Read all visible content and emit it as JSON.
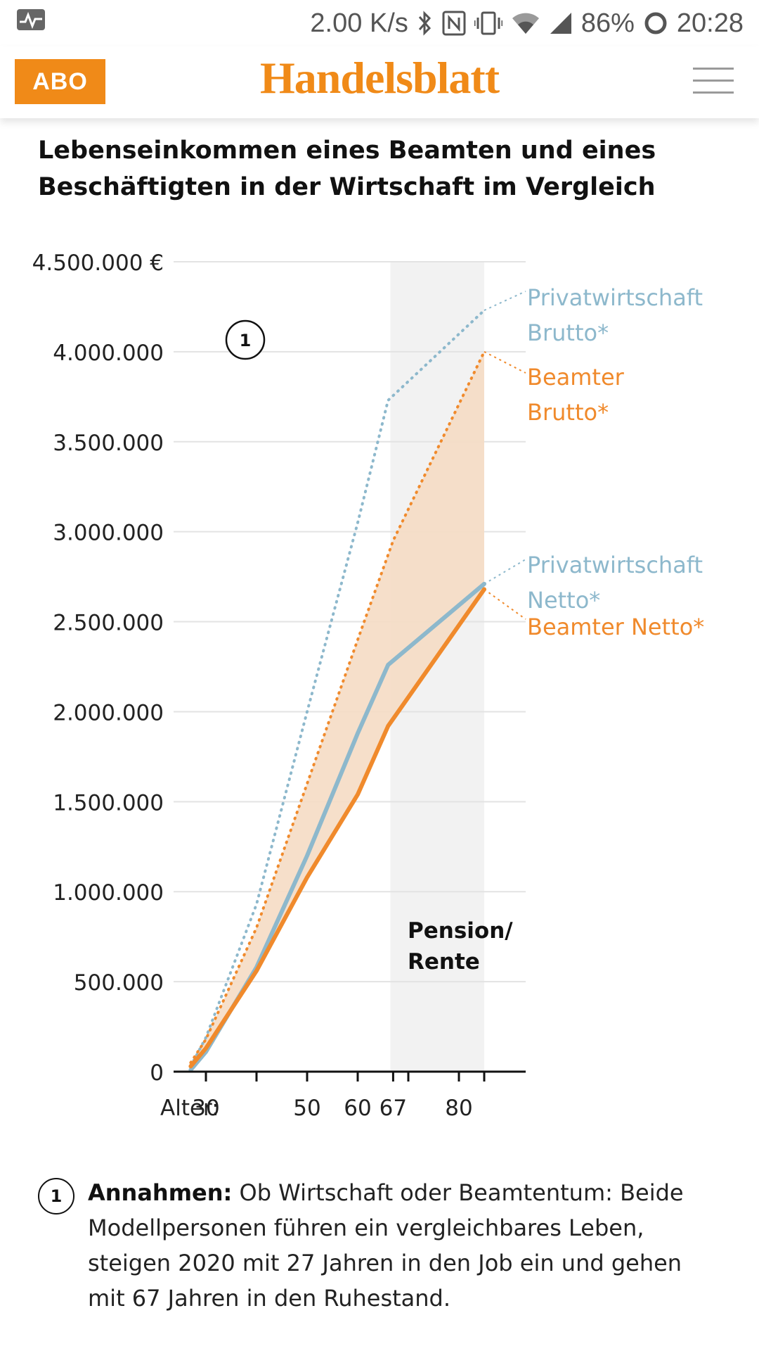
{
  "status_bar": {
    "speed": "2.00 K/s",
    "battery": "86%",
    "time": "20:28",
    "icons": [
      "activity-icon",
      "bluetooth-icon",
      "nfc-icon",
      "vibrate-icon",
      "wifi-icon",
      "signal-icon",
      "battery-ring-icon"
    ]
  },
  "header": {
    "abo_label": "ABO",
    "brand": "Handelsblatt",
    "brand_color": "#f08a18",
    "menu_icon": "hamburger-menu-icon"
  },
  "chart_data": {
    "type": "line",
    "title": "Lebenseinkommen eines Beamten und eines Beschäftigten in der Wirtschaft im Vergleich",
    "x_label": "Alter:",
    "x_ticks": [
      30,
      40,
      50,
      60,
      67,
      70,
      80,
      85
    ],
    "x_tick_labels": [
      {
        "x": 30,
        "label": "30"
      },
      {
        "x": 50,
        "label": "50"
      },
      {
        "x": 60,
        "label": "60"
      },
      {
        "x": 67,
        "label": "67"
      },
      {
        "x": 80,
        "label": "80"
      }
    ],
    "xlim": [
      27,
      93
    ],
    "ylim": [
      0,
      4500000
    ],
    "y_ticks": [
      0,
      500000,
      1000000,
      1500000,
      2000000,
      2500000,
      3000000,
      3500000,
      4000000,
      4500000
    ],
    "y_tick_labels": [
      "0",
      "500.000",
      "1.000.000",
      "1.500.000",
      "2.000.000",
      "2.500.000",
      "3.000.000",
      "3.500.000",
      "4.000.000",
      "4.500.000 €"
    ],
    "grid": true,
    "shaded_region": {
      "x": [
        67,
        85
      ],
      "label": "Pension/ Rente"
    },
    "annotation_marker": "1",
    "colors": {
      "privat": "#8db8cc",
      "beamter": "#f08a2c",
      "fill": "#f5dcc4",
      "pension_band": "#f2f2f2"
    },
    "series": [
      {
        "name": "Privatwirtschaft Brutto*",
        "color": "#8db8cc",
        "style": "dotted",
        "x": [
          27,
          30,
          40,
          50,
          60,
          66,
          85
        ],
        "y": [
          30000,
          190000,
          930000,
          2000000,
          3050000,
          3730000,
          4230000
        ]
      },
      {
        "name": "Beamter Brutto*",
        "color": "#f08a2c",
        "style": "dotted",
        "x": [
          27,
          30,
          40,
          50,
          60,
          67,
          85
        ],
        "y": [
          50000,
          180000,
          800000,
          1600000,
          2400000,
          2950000,
          4000000
        ]
      },
      {
        "name": "Privatwirtschaft Netto*",
        "color": "#8db8cc",
        "style": "solid",
        "x": [
          27,
          30,
          40,
          50,
          60,
          66,
          85
        ],
        "y": [
          10000,
          110000,
          580000,
          1200000,
          1880000,
          2260000,
          2710000
        ]
      },
      {
        "name": "Beamter Netto*",
        "color": "#f08a2c",
        "style": "solid",
        "x": [
          27,
          30,
          40,
          50,
          60,
          66,
          85
        ],
        "y": [
          30000,
          130000,
          560000,
          1080000,
          1540000,
          1920000,
          2680000
        ]
      }
    ],
    "legend_labels": [
      {
        "series": "Privatwirtschaft Brutto*",
        "lines": [
          "Privatwirtschaft",
          "Brutto*"
        ]
      },
      {
        "series": "Beamter Brutto*",
        "lines": [
          "Beamter",
          "Brutto*"
        ]
      },
      {
        "series": "Privatwirtschaft Netto*",
        "lines": [
          "Privatwirtschaft",
          "Netto*"
        ]
      },
      {
        "series": "Beamter Netto*",
        "lines": [
          "Beamter Netto*"
        ]
      }
    ]
  },
  "footnote": {
    "marker": "1",
    "bold": "Annahmen:",
    "lines": [
      " Ob Wirtschaft oder Beamtentum: Beide",
      "Modellpersonen führen ein vergleichbares Leben,",
      "steigen 2020 mit 27 Jahren in den Job ein und gehen",
      "mit 67 Jahren in den Ruhestand."
    ]
  }
}
